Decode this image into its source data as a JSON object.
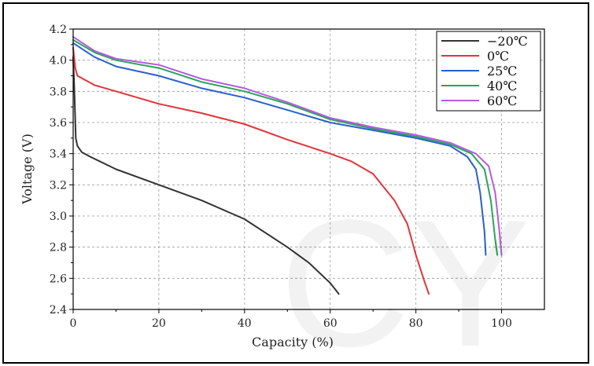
{
  "chart_data": {
    "type": "line",
    "xlabel": "Capacity (%)",
    "ylabel": "Voltage (V)",
    "xlim": [
      0,
      110
    ],
    "ylim": [
      2.4,
      4.2
    ],
    "x_ticks": [
      "0",
      "20",
      "40",
      "60",
      "80",
      "100"
    ],
    "x_tick_values": [
      0,
      20,
      40,
      60,
      80,
      100
    ],
    "y_ticks": [
      "2.4",
      "2.6",
      "2.8",
      "3.0",
      "3.2",
      "3.4",
      "3.6",
      "3.8",
      "4.0",
      "4.2"
    ],
    "y_tick_values": [
      2.4,
      2.6,
      2.8,
      3.0,
      3.2,
      3.4,
      3.6,
      3.8,
      4.0,
      4.2
    ],
    "grid": true,
    "legend_position": "top-right",
    "watermark": "CY",
    "series": [
      {
        "name": "−20℃",
        "color": "#333333",
        "points": [
          [
            0,
            4.02
          ],
          [
            0.3,
            3.8
          ],
          [
            0.6,
            3.5
          ],
          [
            1,
            3.45
          ],
          [
            2,
            3.41
          ],
          [
            4,
            3.38
          ],
          [
            10,
            3.3
          ],
          [
            20,
            3.2
          ],
          [
            30,
            3.1
          ],
          [
            40,
            2.98
          ],
          [
            50,
            2.8
          ],
          [
            55,
            2.7
          ],
          [
            60,
            2.57
          ],
          [
            62,
            2.5
          ]
        ]
      },
      {
        "name": "0℃",
        "color": "#e2343a",
        "points": [
          [
            0,
            4.08
          ],
          [
            0.5,
            3.95
          ],
          [
            1,
            3.9
          ],
          [
            5,
            3.84
          ],
          [
            10,
            3.8
          ],
          [
            20,
            3.72
          ],
          [
            30,
            3.66
          ],
          [
            40,
            3.59
          ],
          [
            50,
            3.49
          ],
          [
            60,
            3.4
          ],
          [
            65,
            3.35
          ],
          [
            70,
            3.27
          ],
          [
            75,
            3.1
          ],
          [
            78,
            2.95
          ],
          [
            80,
            2.75
          ],
          [
            82,
            2.58
          ],
          [
            83,
            2.5
          ]
        ]
      },
      {
        "name": "25℃",
        "color": "#2a5fcc",
        "points": [
          [
            0,
            4.11
          ],
          [
            5,
            4.02
          ],
          [
            10,
            3.96
          ],
          [
            20,
            3.9
          ],
          [
            30,
            3.82
          ],
          [
            40,
            3.76
          ],
          [
            50,
            3.68
          ],
          [
            60,
            3.6
          ],
          [
            70,
            3.55
          ],
          [
            80,
            3.5
          ],
          [
            88,
            3.45
          ],
          [
            92,
            3.38
          ],
          [
            94,
            3.3
          ],
          [
            95,
            3.15
          ],
          [
            96,
            2.9
          ],
          [
            96.3,
            2.75
          ]
        ]
      },
      {
        "name": "40℃",
        "color": "#28a55a",
        "points": [
          [
            0,
            4.13
          ],
          [
            5,
            4.05
          ],
          [
            10,
            4.0
          ],
          [
            20,
            3.95
          ],
          [
            30,
            3.86
          ],
          [
            40,
            3.8
          ],
          [
            50,
            3.72
          ],
          [
            60,
            3.62
          ],
          [
            70,
            3.56
          ],
          [
            80,
            3.51
          ],
          [
            88,
            3.46
          ],
          [
            93,
            3.4
          ],
          [
            96,
            3.3
          ],
          [
            97.5,
            3.1
          ],
          [
            98.5,
            2.85
          ],
          [
            99,
            2.75
          ]
        ]
      },
      {
        "name": "60℃",
        "color": "#b45be0",
        "points": [
          [
            0,
            4.15
          ],
          [
            5,
            4.06
          ],
          [
            10,
            4.01
          ],
          [
            20,
            3.97
          ],
          [
            30,
            3.88
          ],
          [
            40,
            3.82
          ],
          [
            50,
            3.73
          ],
          [
            60,
            3.63
          ],
          [
            70,
            3.57
          ],
          [
            80,
            3.52
          ],
          [
            88,
            3.47
          ],
          [
            94,
            3.4
          ],
          [
            97,
            3.32
          ],
          [
            98.5,
            3.15
          ],
          [
            99.5,
            2.9
          ],
          [
            100,
            2.75
          ]
        ]
      }
    ]
  }
}
